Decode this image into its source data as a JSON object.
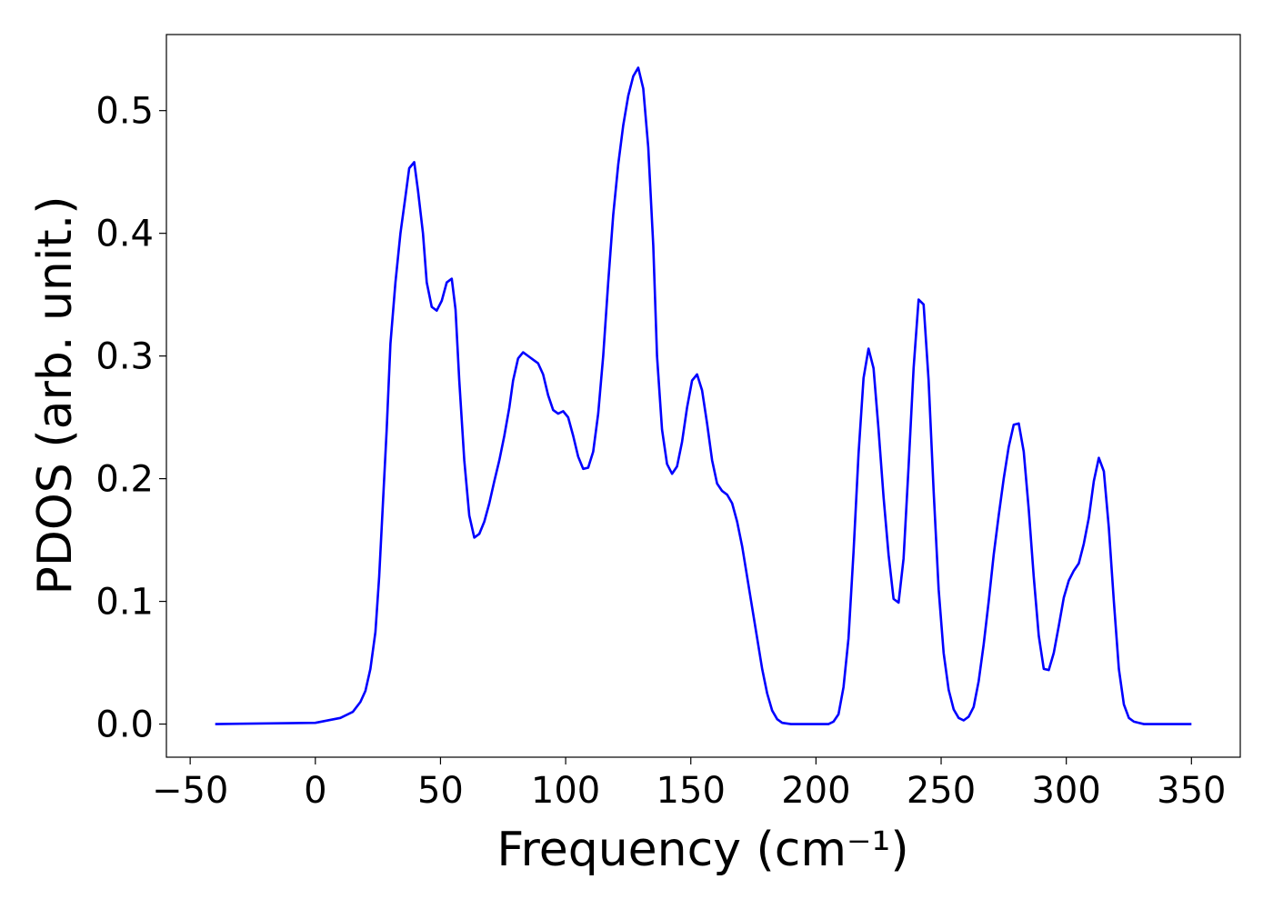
{
  "chart_data": {
    "type": "line",
    "xlabel": "Frequency (cm⁻¹)",
    "ylabel": "PDOS (arb. unit.)",
    "xlim": [
      -59.5,
      369.5
    ],
    "ylim": [
      -0.027,
      0.562
    ],
    "xticks": [
      {
        "value": -50,
        "label": "−50"
      },
      0,
      50,
      100,
      150,
      200,
      250,
      300,
      350
    ],
    "yticks": [
      {
        "value": 0,
        "label": "0.0"
      },
      0.1,
      0.2,
      0.3,
      0.4,
      0.5
    ],
    "grid": false,
    "series": [
      {
        "color": "#0000ff",
        "x": [
          -40,
          0,
          10,
          15,
          18,
          20,
          22,
          24,
          25.5,
          27,
          28.5,
          30,
          32,
          34,
          36,
          37.5,
          39.5,
          41,
          43,
          44.5,
          46.5,
          48.5,
          50.5,
          52.5,
          54.5,
          56,
          57.5,
          59.5,
          61.5,
          63.5,
          65.5,
          67.5,
          69.5,
          71.5,
          73.5,
          75.5,
          77.5,
          79,
          81,
          83,
          85,
          87,
          89,
          91,
          93,
          95,
          97,
          99,
          101,
          103,
          105,
          107,
          109,
          111,
          113,
          115,
          117,
          119,
          121,
          123,
          125,
          127,
          129,
          131,
          133,
          135,
          136.5,
          138.5,
          140.5,
          142.5,
          144.5,
          146.5,
          148.5,
          150.5,
          152.5,
          154.5,
          156.5,
          158.5,
          160.5,
          162.5,
          164.5,
          166.5,
          168.5,
          170.5,
          172.5,
          174.5,
          176.5,
          178.5,
          180.5,
          182.5,
          184.5,
          186.5,
          190,
          205,
          207,
          209,
          211,
          213,
          215,
          217,
          219,
          221,
          223,
          225,
          227,
          229,
          231,
          233,
          235,
          237,
          239,
          241,
          243,
          245,
          247,
          249,
          251,
          253,
          255,
          257,
          259,
          261,
          263,
          265,
          267,
          269,
          271,
          273,
          275,
          277,
          279,
          281,
          283,
          285,
          287,
          289,
          291,
          293,
          295,
          297,
          299,
          301,
          303,
          305,
          307,
          309,
          311,
          313,
          315,
          317,
          319,
          321,
          323,
          325,
          327,
          329,
          331,
          350
        ],
        "values": [
          0,
          0.001,
          0.005,
          0.01,
          0.018,
          0.027,
          0.045,
          0.075,
          0.12,
          0.18,
          0.24,
          0.31,
          0.36,
          0.4,
          0.43,
          0.453,
          0.458,
          0.435,
          0.4,
          0.36,
          0.34,
          0.337,
          0.345,
          0.36,
          0.363,
          0.338,
          0.28,
          0.215,
          0.17,
          0.152,
          0.155,
          0.165,
          0.18,
          0.198,
          0.215,
          0.235,
          0.258,
          0.28,
          0.298,
          0.303,
          0.3,
          0.297,
          0.294,
          0.285,
          0.268,
          0.256,
          0.253,
          0.255,
          0.25,
          0.235,
          0.218,
          0.208,
          0.209,
          0.222,
          0.253,
          0.3,
          0.36,
          0.415,
          0.456,
          0.488,
          0.512,
          0.528,
          0.535,
          0.518,
          0.47,
          0.39,
          0.3,
          0.24,
          0.212,
          0.204,
          0.21,
          0.23,
          0.258,
          0.28,
          0.285,
          0.272,
          0.245,
          0.215,
          0.196,
          0.19,
          0.187,
          0.18,
          0.165,
          0.145,
          0.12,
          0.095,
          0.07,
          0.045,
          0.025,
          0.011,
          0.004,
          0.001,
          0,
          0,
          0.002,
          0.008,
          0.03,
          0.07,
          0.14,
          0.22,
          0.282,
          0.306,
          0.29,
          0.24,
          0.185,
          0.138,
          0.102,
          0.099,
          0.135,
          0.21,
          0.29,
          0.346,
          0.342,
          0.28,
          0.19,
          0.11,
          0.058,
          0.028,
          0.012,
          0.005,
          0.003,
          0.006,
          0.014,
          0.035,
          0.065,
          0.1,
          0.138,
          0.17,
          0.2,
          0.226,
          0.244,
          0.245,
          0.222,
          0.175,
          0.12,
          0.072,
          0.045,
          0.044,
          0.058,
          0.08,
          0.103,
          0.117,
          0.125,
          0.131,
          0.147,
          0.168,
          0.198,
          0.217,
          0.206,
          0.16,
          0.1,
          0.045,
          0.016,
          0.005,
          0.002,
          0.001,
          0,
          0
        ]
      }
    ]
  }
}
